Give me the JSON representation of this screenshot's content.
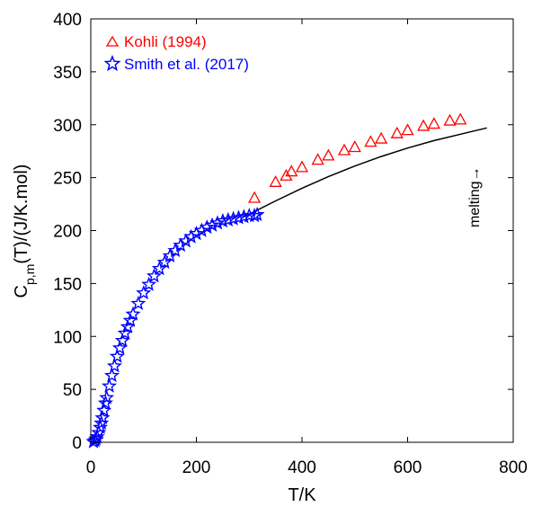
{
  "chart_data": {
    "type": "scatter",
    "xlabel": "T/K",
    "ylabel_main": "C",
    "ylabel_sub": "p,m",
    "ylabel_rest": "(T)/(J/K.mol)",
    "xlim": [
      0,
      800
    ],
    "ylim": [
      0,
      400
    ],
    "xticks": [
      0,
      200,
      400,
      600,
      800
    ],
    "yticks": [
      0,
      50,
      100,
      150,
      200,
      250,
      300,
      350,
      400
    ],
    "grid": false,
    "legend_position": "top-left",
    "annotation": "melting→",
    "series": [
      {
        "name": "Kohli (1994)",
        "marker": "triangle",
        "color": "#ff0000",
        "x": [
          310,
          350,
          370,
          380,
          400,
          430,
          450,
          480,
          500,
          530,
          550,
          580,
          600,
          630,
          650,
          680,
          700
        ],
        "y": [
          231,
          246,
          252,
          256,
          260,
          267,
          271,
          276,
          279,
          284,
          287,
          292,
          295,
          299,
          301,
          304,
          305
        ]
      },
      {
        "name": "Smith et al. (2017)",
        "marker": "star",
        "color": "#0000ff",
        "x": [
          5,
          8,
          10,
          12,
          15,
          18,
          20,
          22,
          25,
          28,
          30,
          35,
          40,
          45,
          50,
          55,
          60,
          65,
          70,
          75,
          80,
          90,
          100,
          110,
          120,
          130,
          140,
          150,
          160,
          170,
          180,
          190,
          200,
          210,
          220,
          230,
          240,
          250,
          260,
          270,
          280,
          290,
          300,
          310,
          315
        ],
        "y": [
          0.5,
          1.5,
          3,
          5,
          9,
          14,
          18,
          23,
          30,
          37,
          42,
          53,
          63,
          72,
          81,
          89,
          96,
          103,
          109,
          115,
          121,
          131,
          141,
          149,
          157,
          164,
          170,
          176,
          181,
          186,
          190,
          194,
          197,
          200,
          203,
          205,
          207,
          209,
          210,
          211,
          212,
          213,
          214,
          214,
          215
        ]
      },
      {
        "name": "",
        "type": "line",
        "color": "#000000",
        "x": [
          290,
          350,
          400,
          450,
          500,
          550,
          600,
          650,
          700,
          750
        ],
        "y": [
          213,
          228,
          240,
          251,
          261,
          270,
          278,
          285,
          291,
          297
        ]
      }
    ]
  },
  "legend": {
    "kohli_label": "Kohli (1994)",
    "smith_label": "Smith et al. (2017)"
  },
  "colors": {
    "kohli": "#ff0000",
    "smith": "#0000ff",
    "fit": "#000000"
  }
}
